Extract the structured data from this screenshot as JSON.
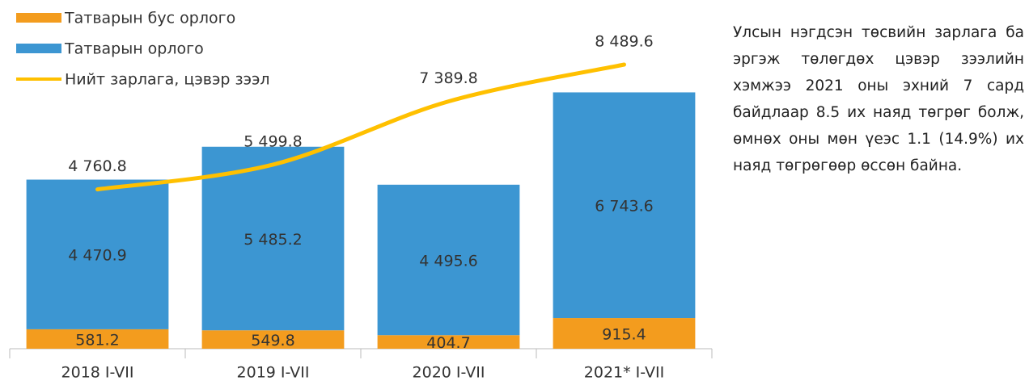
{
  "chart_data": {
    "type": "bar",
    "categories": [
      "2018 I-VII",
      "2019 I-VII",
      "2020 I-VII",
      "2021* I-VII"
    ],
    "stacked": true,
    "series": [
      {
        "name": "Татварын бус орлого",
        "color": "#f39c1e",
        "values": [
          581.2,
          549.8,
          404.7,
          915.4
        ],
        "value_labels": [
          "581.2",
          "549.8",
          "404.7",
          "915.4"
        ]
      },
      {
        "name": "Татварын орлого",
        "color": "#3c96d2",
        "values": [
          4470.9,
          5485.2,
          4495.6,
          6743.6
        ],
        "value_labels": [
          "4 470.9",
          "5 485.2",
          "4 495.6",
          "6 743.6"
        ]
      },
      {
        "name": "Нийт зарлага, цэвэр зээл",
        "type": "line",
        "color": "#ffc000",
        "values": [
          4760.8,
          5499.8,
          7389.8,
          8489.6
        ],
        "value_labels": [
          "4 760.8",
          "5 499.8",
          "7 389.8",
          "8 489.6"
        ]
      }
    ]
  },
  "text": "Улсын нэгдсэн төсвийн зарлага ба эргэж төлөгдөх цэвэр зээлийн хэмжээ 2021 оны эхний 7 сард байдлаар 8.5 их наяд төгрөг болж, өмнөх оны мөн үеэс 1.1 (14.9%) их наяд төгрөгөөр өссөн байна."
}
